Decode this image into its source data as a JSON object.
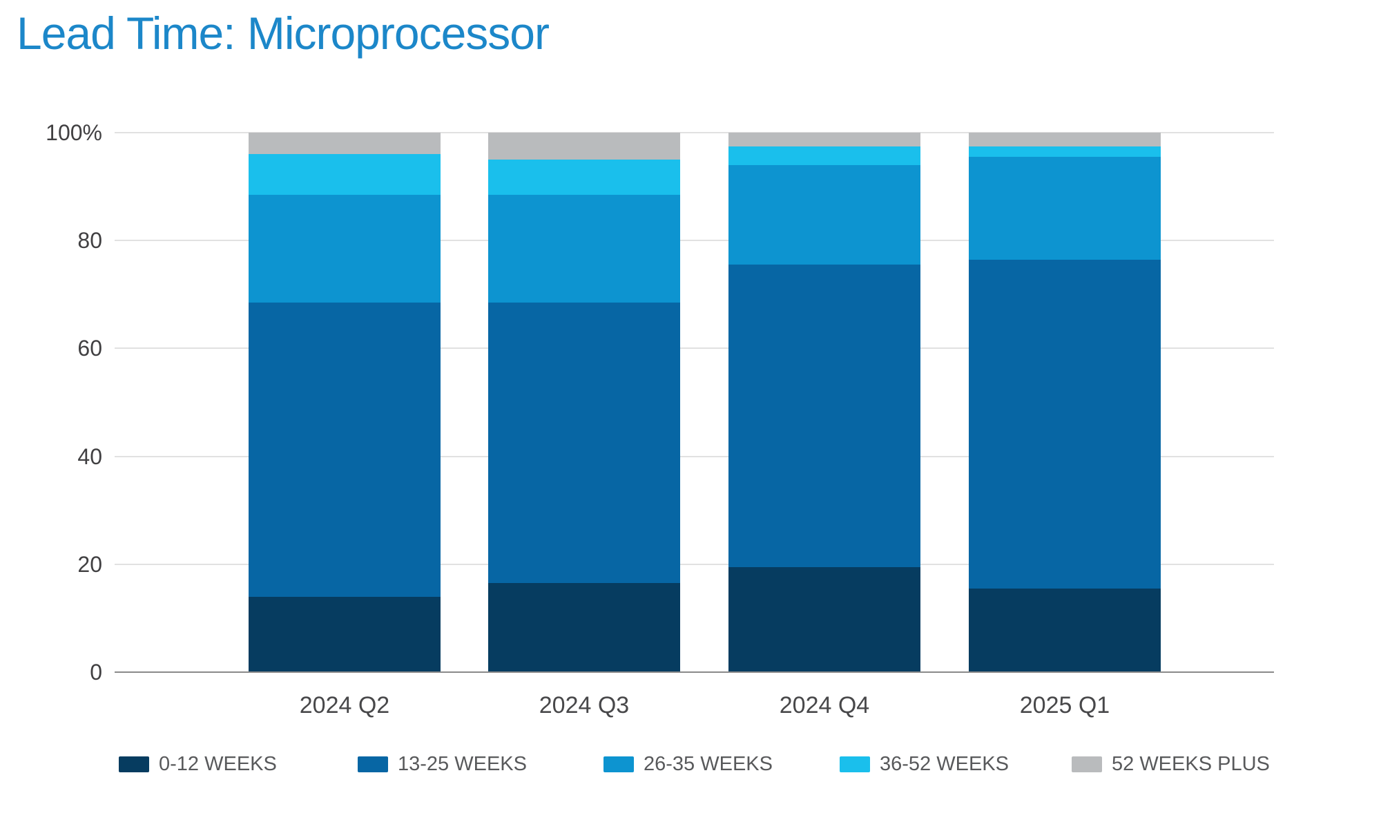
{
  "page": {
    "title": "Lead Time: Microprocessor"
  },
  "colors": {
    "background": "#FFFFFF",
    "title_text": "#1C87C9",
    "tick_text": "#414042",
    "x_label_text": "#48484A",
    "legend_text": "#58595B",
    "gridline": "#E1E1E1",
    "axis_line": "#8A8A8A"
  },
  "chart_data": {
    "type": "bar",
    "stacked": true,
    "percent_stacked": true,
    "title": "Lead Time: Microprocessor",
    "xlabel": "",
    "ylabel": "",
    "ylim": [
      0,
      100
    ],
    "grid": true,
    "legend_position": "bottom",
    "categories": [
      "2024 Q2",
      "2024 Q3",
      "2024 Q4",
      "2025 Q1"
    ],
    "series": [
      {
        "name": "0-12 WEEKS",
        "color": "#063C60",
        "values": [
          14.0,
          16.5,
          19.5,
          15.5
        ]
      },
      {
        "name": "13-25 WEEKS",
        "color": "#0766A4",
        "values": [
          54.5,
          52.0,
          56.0,
          61.0
        ]
      },
      {
        "name": "26-35 WEEKS",
        "color": "#0D94D0",
        "values": [
          20.0,
          20.0,
          18.5,
          19.0
        ]
      },
      {
        "name": "36-52 WEEKS",
        "color": "#1ABFEC",
        "values": [
          7.5,
          6.5,
          3.5,
          2.0
        ]
      },
      {
        "name": "52 WEEKS PLUS",
        "color": "#B9BBBD",
        "values": [
          4.0,
          5.0,
          2.5,
          2.5
        ]
      }
    ],
    "y_axis_ticks": [
      {
        "value": 0,
        "label": "0"
      },
      {
        "value": 20,
        "label": "20"
      },
      {
        "value": 40,
        "label": "40"
      },
      {
        "value": 60,
        "label": "60"
      },
      {
        "value": 80,
        "label": "80"
      },
      {
        "value": 100,
        "label": "100%"
      }
    ]
  }
}
